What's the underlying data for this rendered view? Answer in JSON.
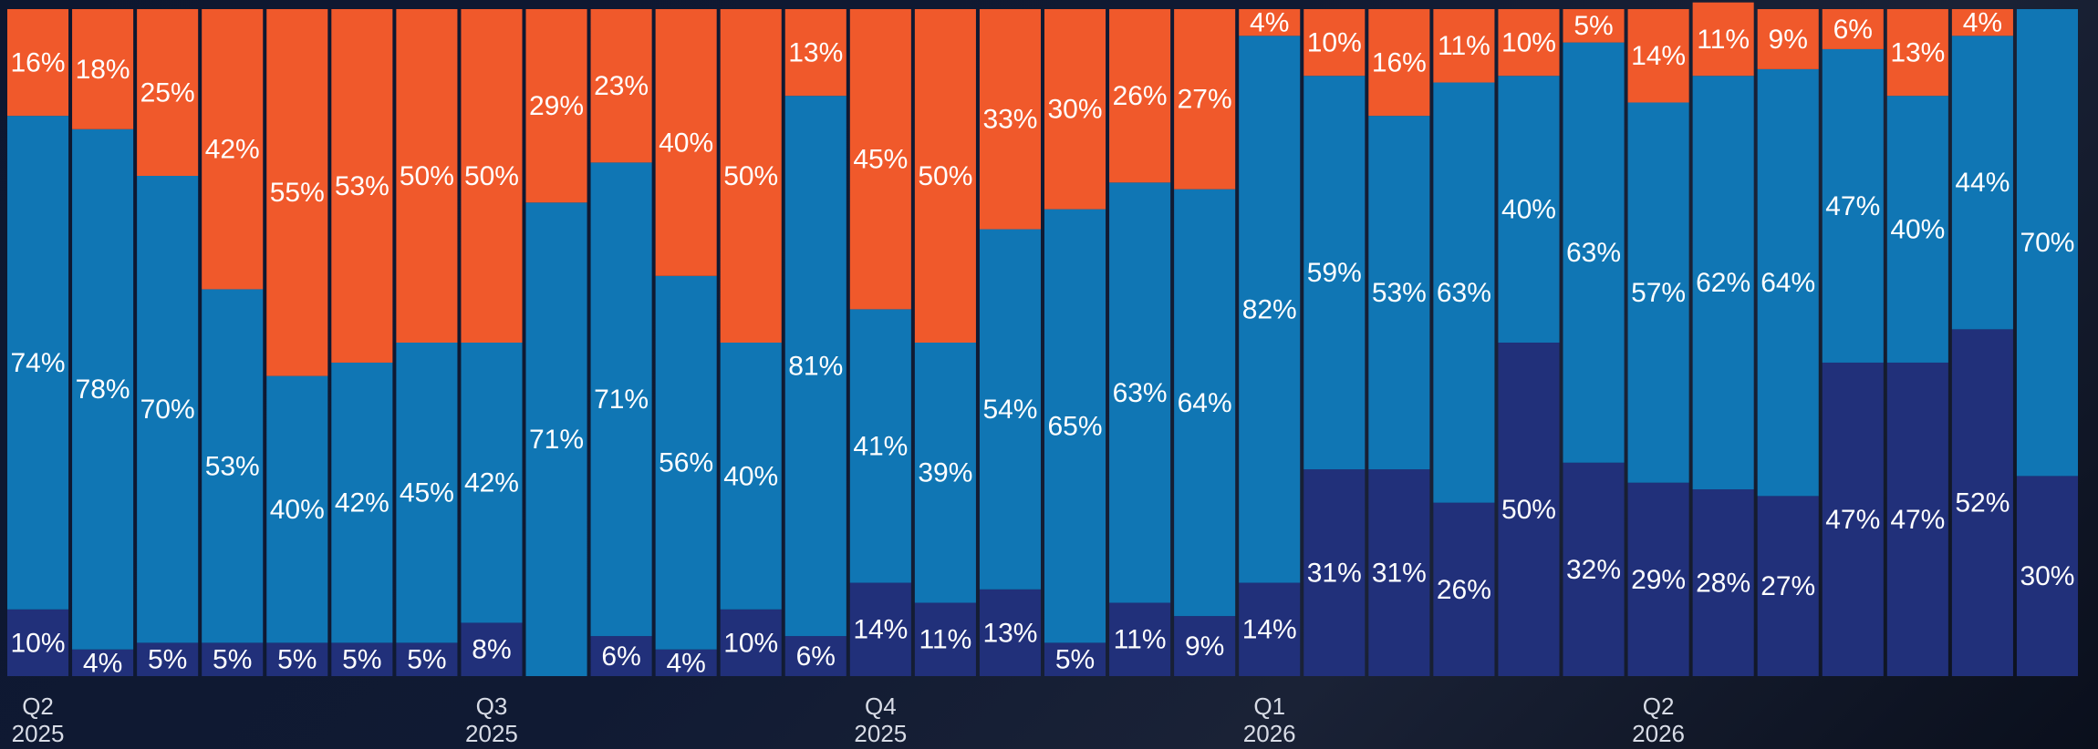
{
  "chart_data": {
    "type": "stacked_bar",
    "categories": [
      "Q2\n2025",
      null,
      null,
      null,
      null,
      null,
      null,
      "Q3\n2025",
      null,
      null,
      null,
      null,
      null,
      "Q4\n2025",
      null,
      null,
      null,
      null,
      null,
      "Q1\n2026",
      null,
      null,
      null,
      null,
      null,
      "Q2\n2026",
      null,
      null,
      null,
      null,
      null,
      null
    ],
    "ylim": [
      0,
      100
    ],
    "series": [
      {
        "color": "#21307a",
        "values": [
          10,
          4,
          5,
          5,
          5,
          5,
          5,
          8,
          null,
          6,
          4,
          10,
          6,
          14,
          11,
          13,
          5,
          11,
          9,
          14,
          31,
          31,
          26,
          50,
          32,
          29,
          28,
          27,
          47,
          47,
          52,
          30
        ]
      },
      {
        "color": "#1076b4",
        "values": [
          74,
          78,
          70,
          53,
          40,
          42,
          45,
          42,
          71,
          71,
          56,
          40,
          81,
          41,
          39,
          54,
          65,
          63,
          64,
          82,
          59,
          53,
          63,
          40,
          63,
          57,
          62,
          64,
          47,
          40,
          44,
          70
        ]
      },
      {
        "color": "#f0592b",
        "values": [
          16,
          18,
          25,
          42,
          55,
          53,
          50,
          50,
          29,
          23,
          40,
          50,
          13,
          45,
          50,
          33,
          30,
          26,
          27,
          4,
          10,
          16,
          11,
          10,
          5,
          14,
          11,
          9,
          6,
          13,
          4,
          null
        ]
      }
    ],
    "value_labels": [
      [
        "10%",
        "4%",
        "5%",
        "5%",
        "5%",
        "5%",
        "5%",
        "8%",
        null,
        "6%",
        "4%",
        "10%",
        "6%",
        "14%",
        "11%",
        "13%",
        "5%",
        "11%",
        "9%",
        "14%",
        "31%",
        "31%",
        "26%",
        "50%",
        "32%",
        "29%",
        "28%",
        "27%",
        "47%",
        "47%",
        "52%",
        "30%"
      ],
      [
        "74%",
        "78%",
        "70%",
        "53%",
        "40%",
        "42%",
        "45%",
        "42%",
        "71%",
        "71%",
        "56%",
        "40%",
        "81%",
        "41%",
        "39%",
        "54%",
        "65%",
        "63%",
        "64%",
        "82%",
        "59%",
        "53%",
        "63%",
        "40%",
        "63%",
        "57%",
        "62%",
        "64%",
        "47%",
        "40%",
        "44%",
        "70%"
      ],
      [
        "16%",
        "18%",
        "25%",
        "42%",
        "55%",
        "53%",
        "50%",
        "50%",
        "29%",
        "23%",
        "40%",
        "50%",
        "13%",
        "45%",
        "50%",
        "33%",
        "30%",
        "26%",
        "27%",
        "4%",
        "10%",
        "16%",
        "11%",
        "10%",
        "5%",
        "14%",
        "11%",
        "9%",
        "6%",
        "13%",
        "4%",
        null
      ]
    ]
  }
}
